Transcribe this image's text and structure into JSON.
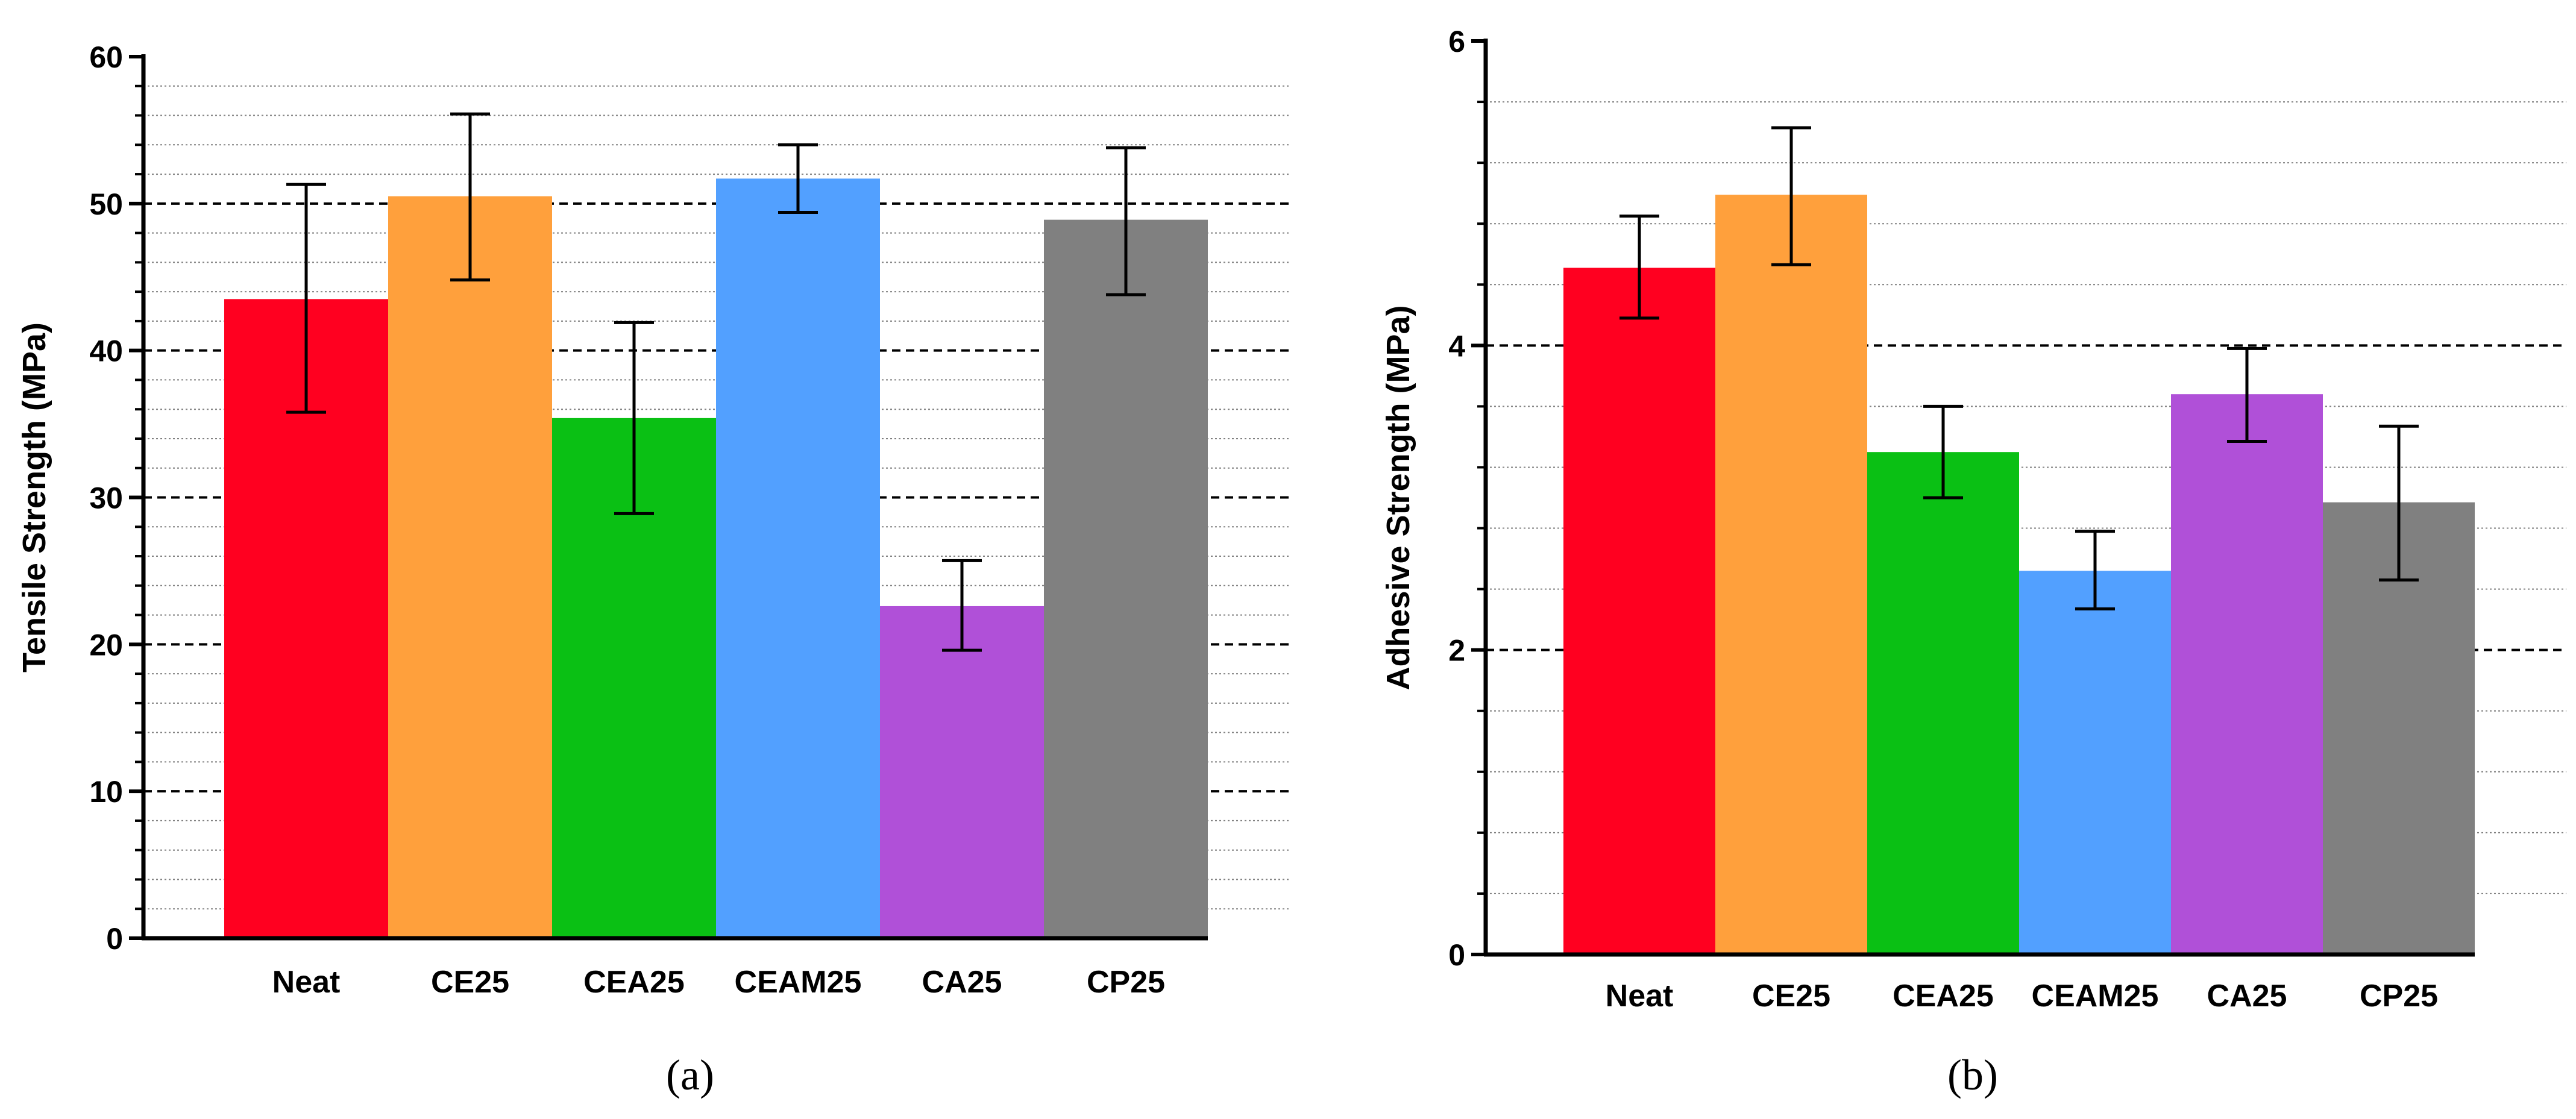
{
  "chart_data": [
    {
      "type": "bar",
      "panel_label": "(a)",
      "ylabel": "Tensile Strength (MPa)",
      "xlabel": "",
      "ylim": [
        0,
        60
      ],
      "yticks": [
        0,
        10,
        20,
        30,
        40,
        50,
        60
      ],
      "major_gridlines": [
        10,
        20,
        30,
        40,
        50
      ],
      "minor_gridlines": [
        2,
        4,
        6,
        8,
        12,
        14,
        16,
        18,
        22,
        24,
        26,
        28,
        32,
        34,
        36,
        38,
        42,
        44,
        46,
        48,
        52,
        54,
        56,
        58
      ],
      "categories": [
        "Neat",
        "CE25",
        "CEA25",
        "CEAM25",
        "CA25",
        "CP25"
      ],
      "values": [
        43.5,
        50.5,
        35.4,
        51.7,
        22.6,
        48.9
      ],
      "error_low": [
        35.8,
        44.8,
        28.9,
        49.4,
        19.6,
        43.8
      ],
      "error_high": [
        51.3,
        56.1,
        41.9,
        54.0,
        25.7,
        53.8
      ],
      "colors": [
        "#ff0020",
        "#ffa03c",
        "#0ac014",
        "#52a0ff",
        "#b050d8",
        "#808080"
      ]
    },
    {
      "type": "bar",
      "panel_label": "(b)",
      "ylabel": "Adhesive Strength (MPa)",
      "xlabel": "",
      "ylim": [
        0,
        6
      ],
      "yticks": [
        0,
        2,
        4,
        6
      ],
      "major_gridlines": [
        2,
        4
      ],
      "minor_gridlines": [
        0.4,
        0.8,
        1.2,
        1.6,
        2.4,
        2.8,
        3.2,
        3.6,
        4.4,
        4.8,
        5.2,
        5.6
      ],
      "categories": [
        "Neat",
        "CE25",
        "CEA25",
        "CEAM25",
        "CA25",
        "CP25"
      ],
      "values": [
        4.51,
        4.99,
        3.3,
        2.52,
        3.68,
        2.97
      ],
      "error_low": [
        4.18,
        4.53,
        3.0,
        2.27,
        3.37,
        2.46
      ],
      "error_high": [
        4.85,
        5.43,
        3.6,
        2.78,
        3.98,
        3.47
      ],
      "colors": [
        "#ff0020",
        "#ffa03c",
        "#0ac014",
        "#52a0ff",
        "#b050d8",
        "#808080"
      ]
    }
  ]
}
